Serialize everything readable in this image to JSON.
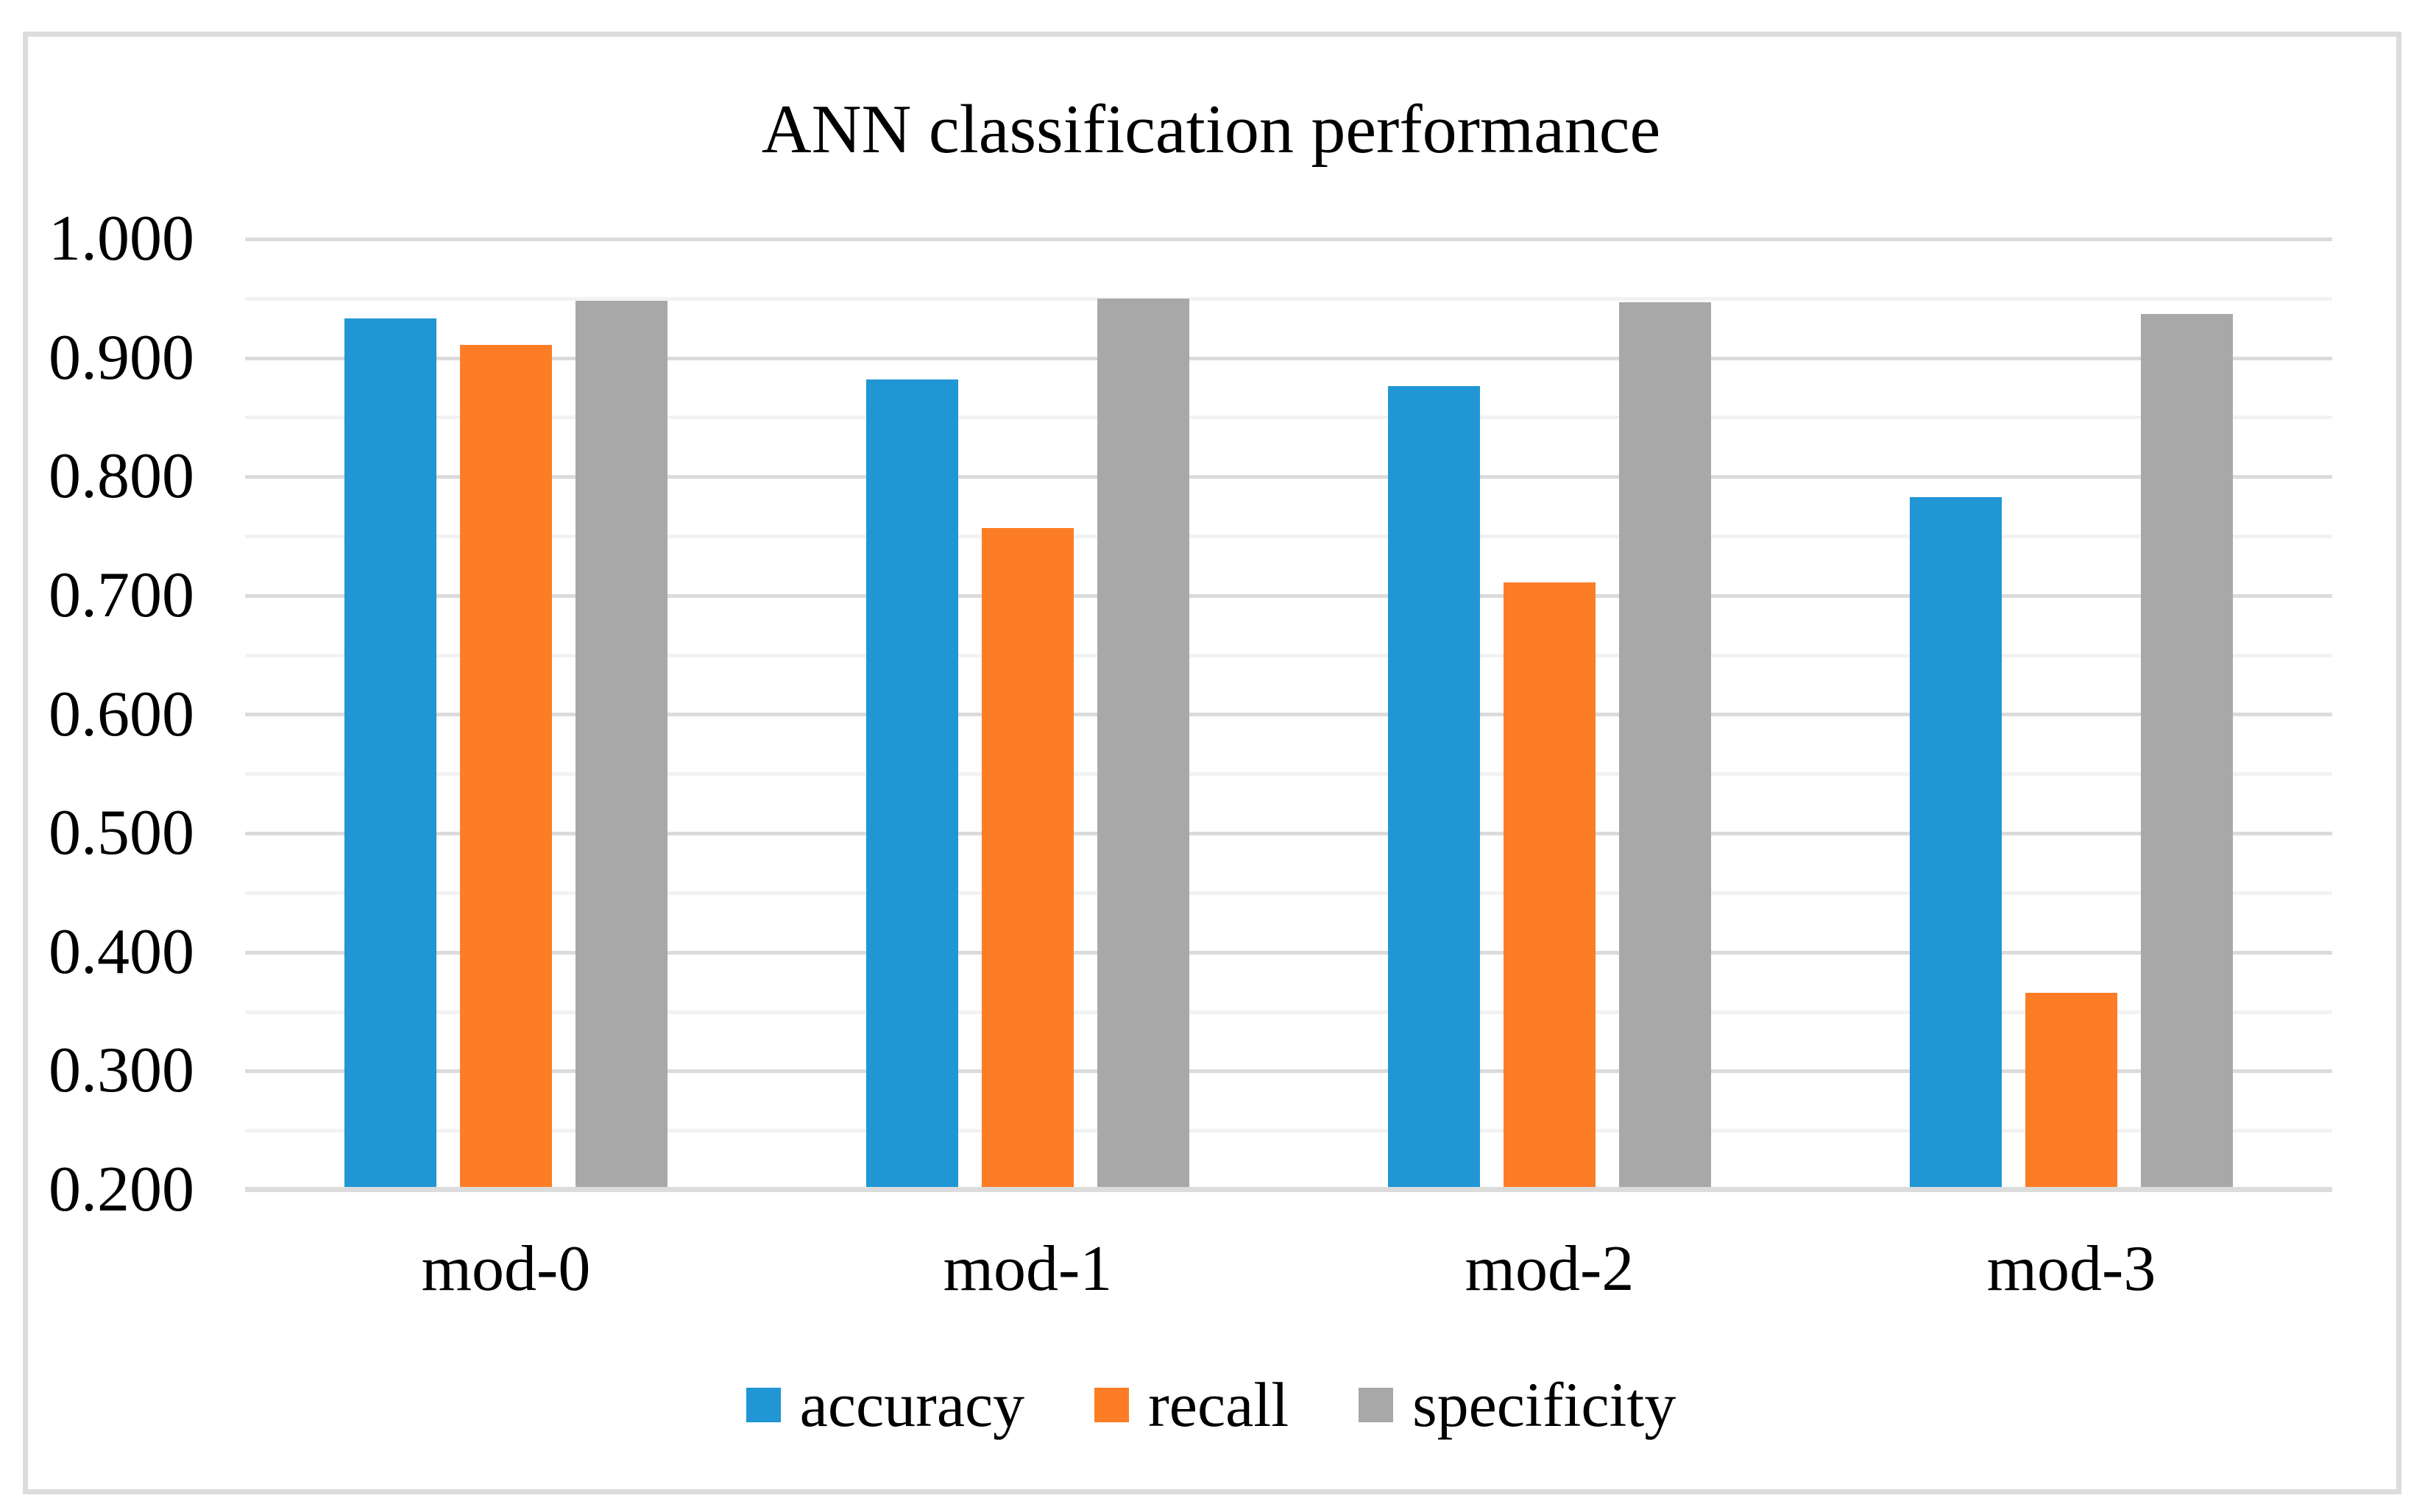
{
  "chart_data": {
    "type": "bar",
    "title": "ANN classification performance",
    "categories": [
      "mod-0",
      "mod-1",
      "mod-2",
      "mod-3"
    ],
    "series": [
      {
        "name": "accuracy",
        "color": "#2096D4",
        "values": [
          0.933,
          0.882,
          0.876,
          0.783
        ]
      },
      {
        "name": "recall",
        "color": "#FC7D26",
        "values": [
          0.911,
          0.757,
          0.711,
          0.366
        ]
      },
      {
        "name": "specificity",
        "color": "#A8A8A8",
        "values": [
          0.948,
          0.95,
          0.947,
          0.937
        ]
      }
    ],
    "xlabel": "",
    "ylabel": "",
    "ylim": [
      0.2,
      1.0
    ],
    "y_major_step": 0.1,
    "y_minor_step": 0.05,
    "y_tick_labels": [
      "1.000",
      "0.900",
      "0.800",
      "0.700",
      "0.600",
      "0.500",
      "0.400",
      "0.300",
      "0.200"
    ],
    "grid": true,
    "legend_position": "bottom"
  },
  "style": {
    "major_gridline_color": "#DBDBDB",
    "minor_gridline_color": "#F2F2F2",
    "axis_line_color": "#DCDCDC",
    "frame_border_color": "#DCDCDC",
    "background_color": "#FFFFFF",
    "text_color": "#000000"
  }
}
